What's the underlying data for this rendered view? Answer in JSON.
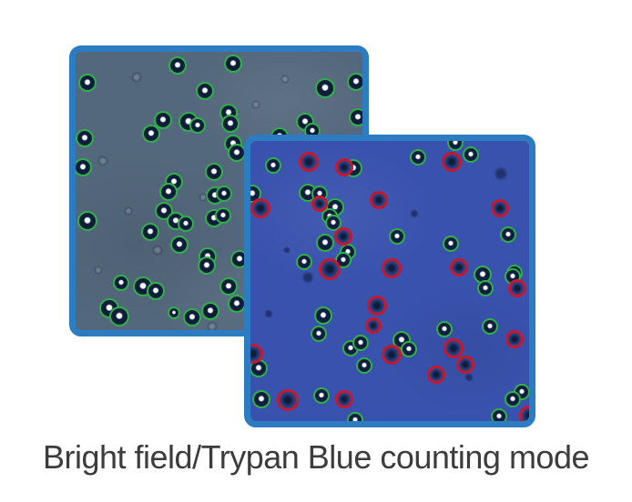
{
  "caption": "Bright field/Trypan Blue counting mode",
  "colors": {
    "panel_border": "#2b7cc1",
    "bright_field_bg": "#54687d",
    "trypan_bg": "#3952ad",
    "live_ring_green": "#2fb04a",
    "dead_ring_red": "#c5182e",
    "caption_text": "#3c3c3c"
  },
  "bright_field": {
    "label": "Bright field microscopy image with live cells circled in green",
    "cells_live": [
      [
        110,
        13,
        8
      ],
      [
        171,
        11,
        8
      ],
      [
        11,
        32,
        8
      ],
      [
        140,
        41,
        8
      ],
      [
        272,
        38,
        9
      ],
      [
        306,
        31,
        8
      ],
      [
        166,
        65,
        8
      ],
      [
        168,
        77,
        8
      ],
      [
        94,
        73,
        8
      ],
      [
        122,
        75,
        9
      ],
      [
        132,
        79,
        7
      ],
      [
        81,
        88,
        8
      ],
      [
        8,
        93,
        8
      ],
      [
        250,
        75,
        8
      ],
      [
        258,
        85,
        7
      ],
      [
        308,
        70,
        8
      ],
      [
        222,
        91,
        8
      ],
      [
        171,
        99,
        8
      ],
      [
        175,
        109,
        8
      ],
      [
        6,
        125,
        8
      ],
      [
        150,
        130,
        8
      ],
      [
        106,
        141,
        8
      ],
      [
        100,
        152,
        8
      ],
      [
        151,
        156,
        8
      ],
      [
        161,
        154,
        7
      ],
      [
        11,
        184,
        9
      ],
      [
        95,
        173,
        8
      ],
      [
        108,
        184,
        8
      ],
      [
        119,
        187,
        7
      ],
      [
        150,
        181,
        8
      ],
      [
        160,
        178,
        7
      ],
      [
        80,
        196,
        8
      ],
      [
        112,
        210,
        8
      ],
      [
        143,
        223,
        8
      ],
      [
        142,
        233,
        8
      ],
      [
        178,
        226,
        8
      ],
      [
        48,
        252,
        7
      ],
      [
        72,
        256,
        9
      ],
      [
        86,
        261,
        8
      ],
      [
        166,
        256,
        8
      ],
      [
        35,
        280,
        9
      ],
      [
        46,
        289,
        9
      ],
      [
        106,
        285,
        5
      ],
      [
        126,
        290,
        8
      ],
      [
        146,
        283,
        8
      ],
      [
        175,
        275,
        8
      ]
    ],
    "debris": [
      [
        67,
        28,
        6
      ],
      [
        30,
        120,
        6
      ],
      [
        198,
        58,
        5
      ],
      [
        90,
        218,
        6
      ],
      [
        58,
        175,
        5
      ],
      [
        140,
        160,
        5
      ],
      [
        25,
        240,
        5
      ],
      [
        150,
        302,
        6
      ],
      [
        230,
        30,
        5
      ]
    ]
  },
  "trypan_blue": {
    "label": "Trypan Blue stained image with live cells circled green and dead cells circled red",
    "cells_live": [
      [
        23,
        25,
        7
      ],
      [
        111,
        28,
        8
      ],
      [
        61,
        55,
        8
      ],
      [
        74,
        56,
        7
      ],
      [
        0,
        56,
        8
      ],
      [
        91,
        71,
        8
      ],
      [
        85,
        81,
        7
      ],
      [
        89,
        88,
        7
      ],
      [
        80,
        110,
        8
      ],
      [
        105,
        120,
        7
      ],
      [
        100,
        129,
        7
      ],
      [
        57,
        131,
        7
      ],
      [
        182,
        16,
        7
      ],
      [
        240,
        13,
        7
      ],
      [
        223,
        0,
        7
      ],
      [
        159,
        103,
        7
      ],
      [
        218,
        111,
        7
      ],
      [
        281,
        101,
        7
      ],
      [
        253,
        145,
        8
      ],
      [
        288,
        143,
        7
      ],
      [
        78,
        190,
        8
      ],
      [
        73,
        210,
        7
      ],
      [
        108,
        226,
        7
      ],
      [
        119,
        220,
        7
      ],
      [
        7,
        248,
        8
      ],
      [
        123,
        245,
        7
      ],
      [
        10,
        282,
        8
      ],
      [
        76,
        278,
        7
      ],
      [
        113,
        305,
        7
      ],
      [
        256,
        160,
        7
      ],
      [
        211,
        205,
        7
      ],
      [
        164,
        217,
        8
      ],
      [
        172,
        227,
        7
      ],
      [
        261,
        202,
        7
      ],
      [
        296,
        274,
        7
      ],
      [
        286,
        282,
        7
      ],
      [
        271,
        301,
        7
      ],
      [
        286,
        147,
        7
      ]
    ],
    "cells_dead": [
      [
        61,
        20,
        8
      ],
      [
        100,
        26,
        7
      ],
      [
        8,
        71,
        8
      ],
      [
        73,
        66,
        6
      ],
      [
        138,
        62,
        7
      ],
      [
        99,
        102,
        7
      ],
      [
        84,
        138,
        9
      ],
      [
        152,
        137,
        8
      ],
      [
        218,
        20,
        8
      ],
      [
        271,
        71,
        7
      ],
      [
        226,
        136,
        7
      ],
      [
        136,
        178,
        8
      ],
      [
        132,
        200,
        6
      ],
      [
        0,
        231,
        8
      ],
      [
        38,
        282,
        9
      ],
      [
        100,
        281,
        7
      ],
      [
        152,
        232,
        8
      ],
      [
        290,
        159,
        7
      ],
      [
        287,
        215,
        7
      ],
      [
        220,
        225,
        8
      ],
      [
        233,
        243,
        7
      ],
      [
        201,
        254,
        7
      ],
      [
        303,
        299,
        8
      ]
    ],
    "debris": [
      [
        63,
        150,
        7
      ],
      [
        275,
        36,
        8
      ],
      [
        20,
        190,
        5
      ],
      [
        180,
        80,
        5
      ],
      [
        240,
        260,
        5
      ],
      [
        40,
        120,
        4
      ]
    ]
  }
}
